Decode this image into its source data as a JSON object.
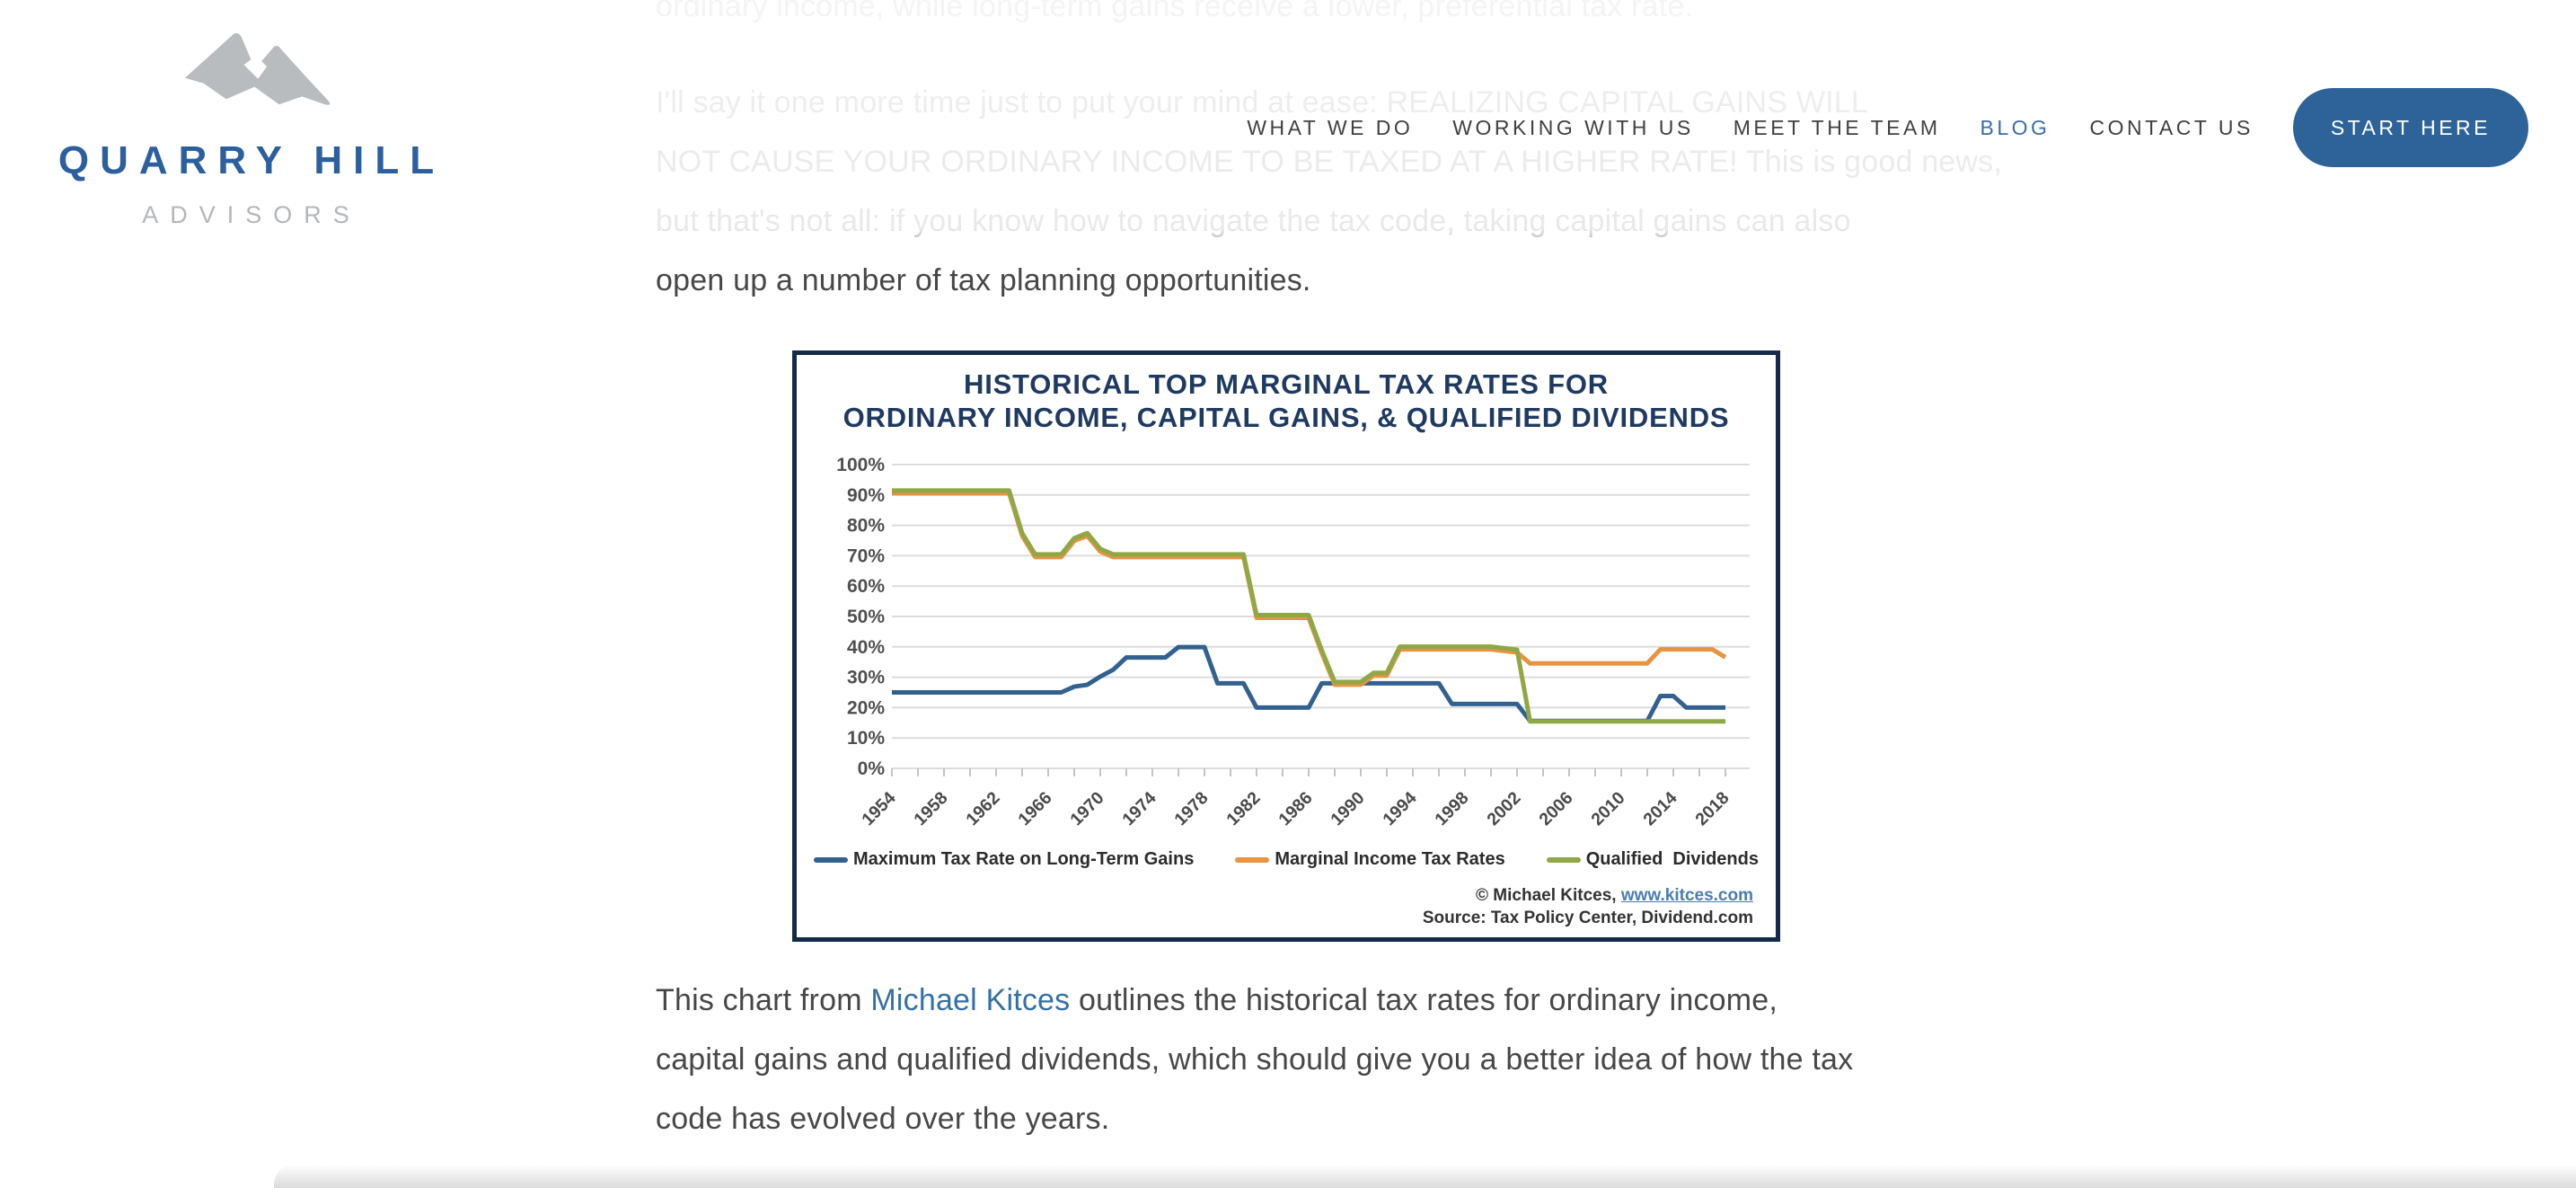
{
  "brand": {
    "name": "QUARRY HILL",
    "subtitle": "ADVISORS",
    "name_color": "#2c5f9e",
    "subtitle_color": "#b3b6ba",
    "mountain_color": "#b9bcbe"
  },
  "nav": {
    "items": [
      {
        "label": "WHAT WE DO",
        "active": false
      },
      {
        "label": "WORKING WITH US",
        "active": false
      },
      {
        "label": "MEET THE TEAM",
        "active": false
      },
      {
        "label": "BLOG",
        "active": true
      },
      {
        "label": "CONTACT US",
        "active": false
      }
    ],
    "active_color": "#3a6da8",
    "cta": {
      "label": "START HERE",
      "bg": "#2e6399",
      "fg": "#ffffff"
    }
  },
  "article": {
    "paragraph_clipped": "ordinary income, while long-term gains receive a lower, preferential tax rate.",
    "paragraph_intro": "I'll say it one more time just to put your  mind at ease: REALIZING CAPITAL GAINS WILL\nNOT CAUSE YOUR ORDINARY INCOME TO BE TAXED AT A HIGHER RATE! This is good news,\nbut that's not all: if you know how to navigate the tax code, taking capital gains can also\nopen up a number of tax planning opportunities."
  },
  "caption": {
    "before": "This chart from ",
    "link_text": "Michael Kitces",
    "after": " outlines the historical tax rates for ordinary income,\ncapital gains and qualified dividends, which should give you a better idea of how the tax\ncode has evolved over the years."
  },
  "chart_data": {
    "type": "line",
    "title_line1": "HISTORICAL TOP MARGINAL TAX RATES FOR",
    "title_line2": "ORDINARY INCOME, CAPITAL GAINS, & QUALIFIED DIVIDENDS",
    "ylim": [
      0,
      100
    ],
    "ytick_step": 10,
    "ytick_suffix": "%",
    "x_range": [
      1954,
      2018
    ],
    "x_minor_tick_step": 2,
    "x_tick_labels": [
      1954,
      1958,
      1962,
      1966,
      1970,
      1974,
      1978,
      1982,
      1986,
      1990,
      1994,
      1998,
      2002,
      2006,
      2010,
      2014,
      2018
    ],
    "grid": true,
    "legend_position": "bottom",
    "series": [
      {
        "name": "Maximum Tax Rate on Long-Term Gains",
        "color": "#33618f",
        "points": [
          [
            1954,
            25
          ],
          [
            1967,
            25
          ],
          [
            1968,
            26.9
          ],
          [
            1969,
            27.5
          ],
          [
            1970,
            30.2
          ],
          [
            1971,
            32.5
          ],
          [
            1972,
            36.5
          ],
          [
            1975,
            36.5
          ],
          [
            1976,
            39.9
          ],
          [
            1978,
            39.9
          ],
          [
            1979,
            28
          ],
          [
            1981,
            28
          ],
          [
            1982,
            20
          ],
          [
            1986,
            20
          ],
          [
            1987,
            28
          ],
          [
            1996,
            28
          ],
          [
            1997,
            21.2
          ],
          [
            2002,
            21.2
          ],
          [
            2003,
            15.6
          ],
          [
            2012,
            15.6
          ],
          [
            2013,
            23.8
          ],
          [
            2014,
            23.8
          ],
          [
            2015,
            20
          ],
          [
            2018,
            20
          ]
        ]
      },
      {
        "name": "Marginal Income Tax Rates",
        "color": "#e79342",
        "points": [
          [
            1954,
            91
          ],
          [
            1963,
            91
          ],
          [
            1964,
            77
          ],
          [
            1965,
            70
          ],
          [
            1967,
            70
          ],
          [
            1968,
            75.3
          ],
          [
            1969,
            77
          ],
          [
            1970,
            71.8
          ],
          [
            1971,
            70
          ],
          [
            1981,
            70
          ],
          [
            1982,
            50
          ],
          [
            1986,
            50
          ],
          [
            1987,
            38.5
          ],
          [
            1988,
            28
          ],
          [
            1990,
            28
          ],
          [
            1991,
            31
          ],
          [
            1992,
            31
          ],
          [
            1993,
            39.6
          ],
          [
            2000,
            39.6
          ],
          [
            2001,
            39.1
          ],
          [
            2002,
            38.6
          ],
          [
            2003,
            35
          ],
          [
            2012,
            35
          ],
          [
            2013,
            39.6
          ],
          [
            2017,
            39.6
          ],
          [
            2018,
            37
          ]
        ]
      },
      {
        "name": "Qualified  Dividends",
        "color": "#8fa845",
        "points": [
          [
            1954,
            91
          ],
          [
            1963,
            91
          ],
          [
            1964,
            77
          ],
          [
            1965,
            70
          ],
          [
            1967,
            70
          ],
          [
            1968,
            75.3
          ],
          [
            1969,
            77
          ],
          [
            1970,
            71.8
          ],
          [
            1971,
            70
          ],
          [
            1981,
            70
          ],
          [
            1982,
            50
          ],
          [
            1986,
            50
          ],
          [
            1987,
            38.5
          ],
          [
            1988,
            28
          ],
          [
            1990,
            28
          ],
          [
            1991,
            31
          ],
          [
            1992,
            31
          ],
          [
            1993,
            39.6
          ],
          [
            2000,
            39.6
          ],
          [
            2001,
            39.1
          ],
          [
            2002,
            38.6
          ],
          [
            2003,
            15
          ],
          [
            2018,
            15
          ]
        ]
      }
    ],
    "attribution_prefix": "© Michael Kitces, ",
    "attribution_link": "www.kitces.com",
    "attribution_source": "Source: Tax Policy Center, Dividend.com"
  }
}
